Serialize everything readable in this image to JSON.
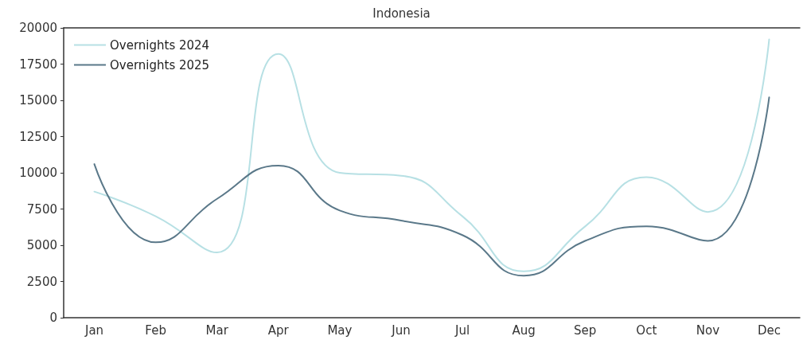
{
  "chart_data": {
    "type": "line",
    "title": "Indonesia",
    "categories": [
      "Jan",
      "Feb",
      "Mar",
      "Apr",
      "May",
      "Jun",
      "Jul",
      "Aug",
      "Sep",
      "Oct",
      "Nov",
      "Dec"
    ],
    "series": [
      {
        "name": "Overnights 2024",
        "color": "#b7e0e4",
        "values": [
          8700,
          7000,
          4500,
          18200,
          10000,
          9800,
          7000,
          3200,
          6300,
          9700,
          7300,
          19200
        ]
      },
      {
        "name": "Overnights 2025",
        "color": "#5a7889",
        "values": [
          10600,
          5200,
          8200,
          10500,
          7400,
          6700,
          5700,
          2900,
          5300,
          6300,
          5300,
          15200
        ]
      }
    ],
    "ylim": [
      0,
      20000
    ],
    "yticks": [
      0,
      2500,
      5000,
      7500,
      10000,
      12500,
      15000,
      17500,
      20000
    ],
    "grid": false,
    "legend": "top left",
    "marker": "none",
    "line_style": "solid"
  }
}
